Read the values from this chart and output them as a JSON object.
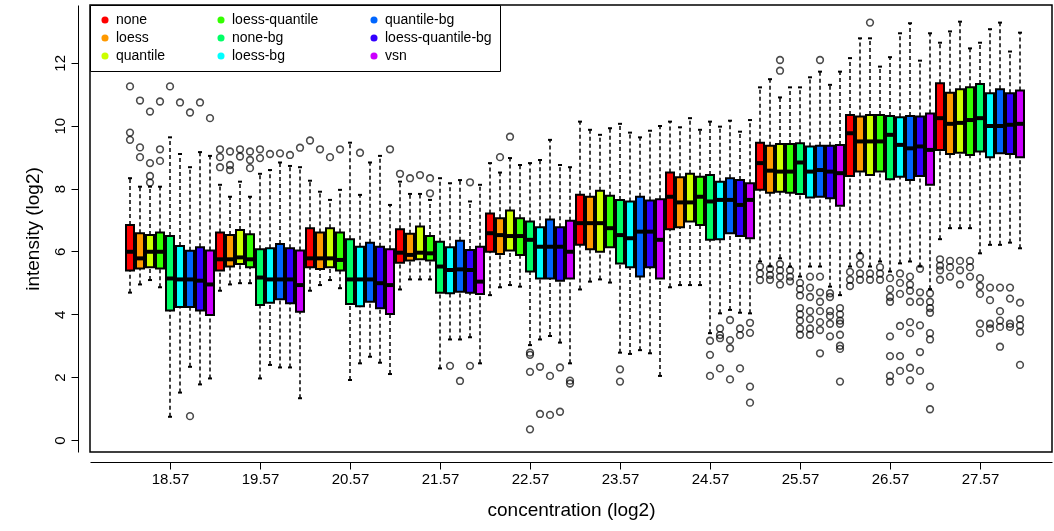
{
  "chart_data": {
    "type": "box",
    "xlabel": "concentration (log2)",
    "ylabel": "intensity (log2)",
    "categories": [
      "18.57",
      "19.57",
      "20.57",
      "21.57",
      "22.57",
      "23.57",
      "24.57",
      "25.57",
      "26.57",
      "27.57"
    ],
    "ylim": [
      -0.38,
      13.84
    ],
    "yticks": [
      0,
      2,
      4,
      6,
      8,
      10,
      12
    ],
    "grid": false,
    "legend": "top left",
    "series": [
      {
        "name": "none",
        "color": "#ff0000",
        "boxes": [
          {
            "low": 4.69,
            "q1": 5.39,
            "median": 5.99,
            "q3": 6.84,
            "high": 8.33,
            "outliers": [
              11.25,
              9.78,
              9.55
            ]
          },
          {
            "low": 4.75,
            "q1": 5.39,
            "median": 5.75,
            "q3": 6.6,
            "high": 8.12,
            "outliers": [
              9.25,
              9.0,
              8.68
            ]
          },
          {
            "low": 4.75,
            "q1": 5.5,
            "median": 5.78,
            "q3": 6.74,
            "high": 8.25,
            "outliers": [
              9.53
            ]
          },
          {
            "low": 4.79,
            "q1": 5.64,
            "median": 5.96,
            "q3": 6.71,
            "high": 8.22,
            "outliers": [
              8.47
            ]
          },
          {
            "low": 4.61,
            "q1": 5.99,
            "median": 6.58,
            "q3": 7.21,
            "high": 8.81
          },
          {
            "low": 4.79,
            "q1": 6.21,
            "median": 6.9,
            "q3": 7.8,
            "high": 10.13
          },
          {
            "low": 4.86,
            "q1": 6.71,
            "median": 7.74,
            "q3": 8.51,
            "high": 10.13
          },
          {
            "low": 5.68,
            "q1": 7.96,
            "median": 8.81,
            "q3": 9.46,
            "high": 11.22,
            "outliers": [
              5.52,
              5.3,
              5.09
            ]
          },
          {
            "low": 5.52,
            "q1": 8.4,
            "median": 9.76,
            "q3": 10.34,
            "high": 12.15,
            "outliers": [
              5.35,
              5.1,
              4.9
            ]
          },
          {
            "low": 6.39,
            "q1": 9.23,
            "median": 10.24,
            "q3": 11.35,
            "high": 12.64,
            "outliers": [
              5.75,
              5.55,
              5.4,
              5.1
            ]
          }
        ]
      },
      {
        "name": "loess",
        "color": "#ff9900",
        "boxes": [
          {
            "low": 4.95,
            "q1": 5.46,
            "median": 5.78,
            "q3": 6.58,
            "high": 8.06,
            "outliers": [
              10.8,
              9.31,
              9.0
            ]
          },
          {
            "low": 4.95,
            "q1": 5.52,
            "median": 5.75,
            "q3": 6.52,
            "high": 7.74,
            "outliers": [
              9.18,
              8.75,
              8.59
            ]
          },
          {
            "low": 4.93,
            "q1": 5.44,
            "median": 5.78,
            "q3": 6.6,
            "high": 7.9,
            "outliers": [
              9.25
            ]
          },
          {
            "low": 5.11,
            "q1": 5.71,
            "median": 5.89,
            "q3": 6.56,
            "high": 7.83,
            "outliers": [
              8.33
            ]
          },
          {
            "low": 4.86,
            "q1": 5.92,
            "median": 6.52,
            "q3": 7.06,
            "high": 8.51,
            "outliers": [
              9.0
            ]
          },
          {
            "low": 5.04,
            "q1": 6.07,
            "median": 6.9,
            "q3": 7.74,
            "high": 9.87
          },
          {
            "low": 4.93,
            "q1": 6.77,
            "median": 7.56,
            "q3": 8.36,
            "high": 9.95
          },
          {
            "low": 5.52,
            "q1": 7.87,
            "median": 8.57,
            "q3": 9.36,
            "high": 11.48,
            "outliers": [
              5.45,
              5.25,
              5.1
            ]
          },
          {
            "low": 5.94,
            "q1": 8.54,
            "median": 9.5,
            "q3": 10.29,
            "high": 12.78,
            "outliers": [
              5.85,
              5.6,
              5.3,
              5.1
            ]
          },
          {
            "low": 6.74,
            "q1": 9.1,
            "median": 10.06,
            "q3": 11.05,
            "high": 13.0,
            "outliers": [
              5.7,
              5.5,
              5.2
            ]
          }
        ]
      },
      {
        "name": "quantile",
        "color": "#ccff00",
        "boxes": [
          {
            "low": 5.09,
            "q1": 5.5,
            "median": 5.99,
            "q3": 6.52,
            "high": 8.06,
            "outliers": [
              10.45,
              8.81,
              8.4,
              8.19
            ]
          },
          {
            "low": 4.99,
            "q1": 5.6,
            "median": 5.81,
            "q3": 6.68,
            "high": 8.22,
            "outliers": [
              9.25,
              9.02
            ]
          },
          {
            "low": 5.09,
            "q1": 5.5,
            "median": 5.78,
            "q3": 6.74,
            "high": 7.64,
            "outliers": [
              9.0
            ]
          },
          {
            "low": 5.11,
            "q1": 5.75,
            "median": 5.96,
            "q3": 6.79,
            "high": 7.83,
            "outliers": [
              8.43
            ]
          },
          {
            "low": 4.93,
            "q1": 6.03,
            "median": 6.49,
            "q3": 7.3,
            "high": 8.97,
            "outliers": [
              9.65
            ]
          },
          {
            "low": 5.11,
            "q1": 5.99,
            "median": 6.9,
            "q3": 7.93,
            "high": 9.71
          },
          {
            "low": 4.93,
            "q1": 6.95,
            "median": 7.56,
            "q3": 8.47,
            "high": 10.24
          },
          {
            "low": 5.78,
            "q1": 7.9,
            "median": 8.54,
            "q3": 9.42,
            "high": 10.9,
            "outliers": [
              12.09,
              11.75,
              5.6,
              5.4,
              5.2,
              4.95
            ]
          },
          {
            "low": 5.52,
            "q1": 8.43,
            "median": 9.5,
            "q3": 10.34,
            "high": 12.78,
            "outliers": [
              13.28,
              5.3,
              5.1
            ]
          },
          {
            "low": 6.74,
            "q1": 9.14,
            "median": 10.09,
            "q3": 11.16,
            "high": 13.31,
            "outliers": [
              5.7,
              5.4,
              4.95
            ]
          }
        ]
      },
      {
        "name": "loess-quantile",
        "color": "#33ff00",
        "boxes": [
          {
            "low": 4.86,
            "q1": 5.46,
            "median": 5.99,
            "q3": 6.6,
            "high": 8.06,
            "outliers": [
              10.77,
              9.25,
              8.88
            ]
          },
          {
            "low": 4.99,
            "q1": 5.5,
            "median": 5.75,
            "q3": 6.55,
            "high": 7.74,
            "outliers": [
              9.18,
              8.91,
              8.65
            ]
          },
          {
            "low": 4.83,
            "q1": 5.39,
            "median": 5.73,
            "q3": 6.6,
            "high": 7.96,
            "outliers": [
              9.25
            ]
          },
          {
            "low": 5.11,
            "q1": 5.71,
            "median": 5.94,
            "q3": 6.49,
            "high": 7.64,
            "outliers": [
              8.33,
              7.85
            ]
          },
          {
            "low": 4.88,
            "q1": 5.89,
            "median": 6.49,
            "q3": 7.06,
            "high": 8.75
          },
          {
            "low": 5.01,
            "q1": 6.13,
            "median": 6.74,
            "q3": 7.77,
            "high": 9.92
          },
          {
            "low": 4.93,
            "q1": 6.84,
            "median": 7.74,
            "q3": 8.38,
            "high": 9.87
          },
          {
            "low": 5.52,
            "q1": 7.87,
            "median": 8.54,
            "q3": 9.42,
            "high": 11.22,
            "outliers": [
              5.4,
              5.2,
              5.05
            ]
          },
          {
            "low": 5.68,
            "q1": 8.54,
            "median": 9.5,
            "q3": 10.34,
            "high": 11.88,
            "outliers": [
              5.5,
              5.3,
              5.1
            ]
          },
          {
            "low": 6.74,
            "q1": 9.07,
            "median": 10.18,
            "q3": 11.22,
            "high": 12.46,
            "outliers": [
              5.7,
              5.5,
              5.2
            ]
          }
        ]
      },
      {
        "name": "none-bg",
        "color": "#00ff66",
        "boxes": [
          {
            "low": 0.74,
            "q1": 4.12,
            "median": 5.14,
            "q3": 6.49,
            "high": 9.63,
            "outliers": [
              11.25
            ]
          },
          {
            "low": 1.96,
            "q1": 4.3,
            "median": 5.17,
            "q3": 6.07,
            "high": 8.47,
            "outliers": [
              9.25,
              8.97
            ]
          },
          {
            "low": 1.91,
            "q1": 4.33,
            "median": 5.11,
            "q3": 6.39,
            "high": 9.46
          },
          {
            "low": 2.28,
            "q1": 4.69,
            "median": 5.52,
            "q3": 6.31,
            "high": 8.33
          },
          {
            "low": 3.02,
            "q1": 5.36,
            "median": 6.37,
            "q3": 6.95,
            "high": 8.81,
            "outliers": [
              2.78,
              2.71,
              2.17,
              0.34
            ]
          },
          {
            "low": 2.78,
            "q1": 5.62,
            "median": 6.52,
            "q3": 7.64,
            "high": 10.06,
            "outliers": [
              2.25,
              1.86
            ]
          },
          {
            "low": 3.4,
            "q1": 6.37,
            "median": 7.59,
            "q3": 8.43,
            "high": 10.13,
            "outliers": [
              3.16,
              2.71,
              2.04
            ]
          },
          {
            "low": 5.2,
            "q1": 7.83,
            "median": 8.83,
            "q3": 9.44,
            "high": 11.22,
            "outliers": [
              5.0,
              4.8,
              4.6,
              4.2,
              4.0,
              3.8,
              3.55,
              3.35
            ]
          },
          {
            "low": 5.36,
            "q1": 8.3,
            "median": 9.71,
            "q3": 10.31,
            "high": 12.18,
            "outliers": [
              5.15,
              4.8,
              4.55,
              4.4,
              3.3,
              2.67,
              2.04,
              1.86
            ]
          },
          {
            "low": 5.94,
            "q1": 9.18,
            "median": 10.24,
            "q3": 11.33,
            "high": 12.64,
            "outliers": [
              5.15,
              4.9,
              4.65,
              3.7,
              3.4
            ]
          }
        ]
      },
      {
        "name": "loess-bg",
        "color": "#00ffff",
        "boxes": [
          {
            "low": 1.51,
            "q1": 4.23,
            "median": 5.11,
            "q3": 6.17,
            "high": 9.1,
            "outliers": [
              10.74
            ]
          },
          {
            "low": 2.39,
            "q1": 4.37,
            "median": 5.11,
            "q3": 6.1,
            "high": 8.59,
            "outliers": [
              9.1
            ]
          },
          {
            "low": 2.44,
            "q1": 4.26,
            "median": 5.11,
            "q3": 6.15,
            "high": 7.8,
            "outliers": [
              9.14
            ]
          },
          {
            "low": 3.2,
            "q1": 4.67,
            "median": 5.41,
            "q3": 6.13,
            "high": 8.17,
            "outliers": [
              2.36
            ]
          },
          {
            "low": 3.2,
            "q1": 5.14,
            "median": 6.15,
            "q3": 6.77,
            "high": 8.91,
            "outliers": [
              2.33,
              0.83
            ]
          },
          {
            "low": 2.74,
            "q1": 5.5,
            "median": 6.42,
            "q3": 7.59,
            "high": 9.78
          },
          {
            "low": 4.03,
            "q1": 6.39,
            "median": 7.64,
            "q3": 8.22,
            "high": 9.97,
            "outliers": [
              3.55,
              3.34,
              3.24,
              2.28
            ]
          },
          {
            "low": 5.52,
            "q1": 7.72,
            "median": 8.54,
            "q3": 9.34,
            "high": 11.54,
            "outliers": [
              5.2,
              4.85,
              4.55,
              4.1,
              3.85,
              3.55,
              3.35
            ]
          },
          {
            "low": 5.62,
            "q1": 8.38,
            "median": 9.39,
            "q3": 10.27,
            "high": 12.94,
            "outliers": [
              5.3,
              5.0,
              4.65,
              3.63,
              2.67,
              2.2
            ]
          },
          {
            "low": 6.21,
            "q1": 9.0,
            "median": 9.99,
            "q3": 11.03,
            "high": 13.07,
            "outliers": [
              4.85,
              4.45,
              3.7,
              3.55
            ]
          }
        ]
      },
      {
        "name": "quantile-bg",
        "color": "#0066ff",
        "boxes": [
          {
            "low": 2.33,
            "q1": 4.23,
            "median": 5.11,
            "q3": 6.02,
            "high": 8.68,
            "outliers": [
              10.42,
              0.76
            ]
          },
          {
            "low": 2.31,
            "q1": 4.48,
            "median": 5.11,
            "q3": 6.24,
            "high": 8.83,
            "outliers": [
              9.12
            ]
          },
          {
            "low": 2.65,
            "q1": 4.4,
            "median": 5.11,
            "q3": 6.28,
            "high": 8.83
          },
          {
            "low": 3.2,
            "q1": 4.72,
            "median": 5.43,
            "q3": 6.34,
            "high": 8.27,
            "outliers": [
              1.88
            ]
          },
          {
            "low": 3.31,
            "q1": 5.14,
            "median": 6.15,
            "q3": 7.02,
            "high": 9.55,
            "outliers": [
              2.04,
              0.8
            ]
          },
          {
            "low": 2.86,
            "q1": 5.2,
            "median": 6.63,
            "q3": 7.74,
            "high": 9.63
          },
          {
            "low": 4.14,
            "q1": 6.58,
            "median": 7.64,
            "q3": 8.33,
            "high": 10.16,
            "outliers": [
              3.82,
              3.18,
              2.92,
              1.93
            ]
          },
          {
            "low": 5.52,
            "q1": 7.74,
            "median": 8.59,
            "q3": 9.36,
            "high": 11.72,
            "outliers": [
              12.09,
              5.2,
              4.7,
              4.4,
              4.1,
              3.75,
              3.5,
              2.76
            ]
          },
          {
            "low": 5.68,
            "q1": 8.27,
            "median": 9.28,
            "q3": 10.31,
            "high": 13.26,
            "outliers": [
              5.2,
              4.95,
              4.75,
              4.4,
              3.75,
              3.4,
              2.3,
              1.9
            ]
          },
          {
            "low": 6.21,
            "q1": 9.12,
            "median": 9.99,
            "q3": 11.16,
            "high": 13.28,
            "outliers": [
              4.85,
              4.1,
              3.8,
              3.6,
              2.97
            ]
          }
        ]
      },
      {
        "name": "loess-quantile-bg",
        "color": "#3300ff",
        "boxes": [
          {
            "low": 1.77,
            "q1": 4.12,
            "median": 5.07,
            "q3": 6.13,
            "high": 9.16,
            "outliers": [
              10.74
            ]
          },
          {
            "low": 2.31,
            "q1": 4.35,
            "median": 5.11,
            "q3": 6.1,
            "high": 8.72,
            "outliers": [
              9.07
            ]
          },
          {
            "low": 2.46,
            "q1": 4.19,
            "median": 4.99,
            "q3": 6.15,
            "high": 9.04
          },
          {
            "low": 3.27,
            "q1": 4.69,
            "median": 5.41,
            "q3": 6.05,
            "high": 7.59,
            "outliers": [
              8.2,
              2.36
            ]
          },
          {
            "low": 3.1,
            "q1": 5.07,
            "median": 6.15,
            "q3": 6.77,
            "high": 8.75,
            "outliers": [
              2.31,
              0.9
            ]
          },
          {
            "low": 2.76,
            "q1": 5.5,
            "median": 6.63,
            "q3": 7.62,
            "high": 9.84
          },
          {
            "low": 4.05,
            "q1": 6.49,
            "median": 7.48,
            "q3": 8.27,
            "high": 9.81,
            "outliers": [
              3.55,
              3.34,
              2.28
            ]
          },
          {
            "low": 4.88,
            "q1": 7.69,
            "median": 8.54,
            "q3": 9.36,
            "high": 11.3,
            "outliers": [
              4.67,
              4.55,
              4.1,
              3.95,
              3.7,
              3.3
            ]
          },
          {
            "low": 5.52,
            "q1": 8.4,
            "median": 9.34,
            "q3": 10.29,
            "high": 12.07,
            "outliers": [
              5.45,
              4.7,
              4.4,
              3.65,
              2.8,
              2.2
            ]
          },
          {
            "low": 6.28,
            "q1": 9.1,
            "median": 10.03,
            "q3": 11.03,
            "high": 12.36,
            "outliers": [
              4.85,
              4.5,
              3.7,
              3.6
            ]
          }
        ]
      },
      {
        "name": "vsn",
        "color": "#cc00ff",
        "boxes": [
          {
            "low": 1.96,
            "q1": 3.98,
            "median": 4.95,
            "q3": 6.03,
            "high": 9.04,
            "outliers": [
              10.24
            ]
          },
          {
            "low": 1.33,
            "q1": 4.08,
            "median": 4.93,
            "q3": 6.03,
            "high": 8.68,
            "outliers": [
              9.3
            ]
          },
          {
            "low": 2.1,
            "q1": 4.01,
            "median": 4.93,
            "q3": 6.07,
            "high": 7.48,
            "outliers": [
              9.25
            ]
          },
          {
            "low": 2.44,
            "q1": 4.65,
            "median": 5.04,
            "q3": 6.15,
            "high": 8.12
          },
          {
            "low": 2.44,
            "q1": 5.14,
            "median": 5.99,
            "q3": 6.98,
            "high": 8.68,
            "outliers": [
              1.89,
              1.8
            ]
          },
          {
            "low": 2.04,
            "q1": 5.14,
            "median": 6.37,
            "q3": 7.66,
            "high": 9.99
          },
          {
            "low": 4.03,
            "q1": 6.42,
            "median": 7.64,
            "q3": 8.17,
            "high": 10.18,
            "outliers": [
              3.73,
              3.41,
              1.7,
              1.19
            ]
          },
          {
            "low": 4.61,
            "q1": 7.45,
            "median": 8.49,
            "q3": 9.39,
            "high": 11.72,
            "outliers": [
              4.2,
              4.0,
              3.8,
              3.7,
              3.35,
              3.0,
              2.9,
              1.86
            ]
          },
          {
            "low": 4.8,
            "q1": 8.12,
            "median": 9.23,
            "q3": 10.39,
            "high": 12.94,
            "outliers": [
              4.67,
              4.4,
              4.2,
              4.05,
              3.4,
              3.2,
              1.7,
              0.98
            ]
          },
          {
            "low": 6.1,
            "q1": 9.0,
            "median": 10.06,
            "q3": 11.12,
            "high": 12.96,
            "outliers": [
              4.37,
              3.85,
              3.65,
              3.45,
              2.39
            ]
          }
        ]
      }
    ]
  }
}
